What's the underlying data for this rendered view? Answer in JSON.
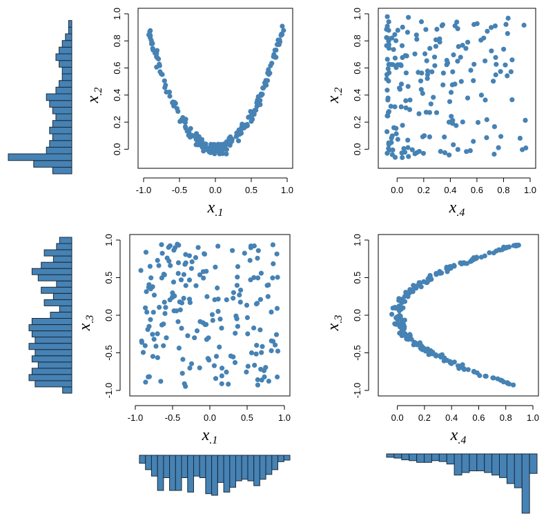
{
  "colors": {
    "point": "#4682b4",
    "bar": "#4682b4",
    "bar_stroke": "#1a2a3a",
    "frame": "#000000"
  },
  "chart_data": [
    {
      "id": "x1-vs-x2",
      "type": "scatter",
      "xlabel": {
        "main": "x",
        "sub": ".1"
      },
      "ylabel": {
        "main": "x",
        "sub": ".2"
      },
      "xlim": [
        -1.0,
        1.0
      ],
      "ylim": [
        -0.1,
        1.0
      ],
      "xticks": [
        -1.0,
        -0.5,
        0.0,
        0.5,
        1.0
      ],
      "xtick_labels": [
        "-1.0",
        "-0.5",
        "0.0",
        "0.5",
        "1.0"
      ],
      "yticks": [
        0.0,
        0.2,
        0.4,
        0.6,
        0.8,
        1.0
      ],
      "ytick_labels": [
        "0.0",
        "0.2",
        "0.4",
        "0.6",
        "0.8",
        "1.0"
      ],
      "grid": false,
      "pattern": "parabola_y",
      "n_points": 200
    },
    {
      "id": "x4-vs-x2",
      "type": "scatter",
      "xlabel": {
        "main": "x",
        "sub": ".4"
      },
      "ylabel": {
        "main": "x",
        "sub": ".2"
      },
      "xlim": [
        -0.1,
        1.0
      ],
      "ylim": [
        -0.1,
        1.0
      ],
      "xticks": [
        0.0,
        0.2,
        0.4,
        0.6,
        0.8,
        1.0
      ],
      "xtick_labels": [
        "0.0",
        "0.2",
        "0.4",
        "0.6",
        "0.8",
        "1.0"
      ],
      "yticks": [
        0.0,
        0.2,
        0.4,
        0.6,
        0.8,
        1.0
      ],
      "ytick_labels": [
        "0.0",
        "0.2",
        "0.4",
        "0.6",
        "0.8",
        "1.0"
      ],
      "grid": false,
      "pattern": "uniform_skew_left",
      "n_points": 200
    },
    {
      "id": "x1-vs-x3",
      "type": "scatter",
      "xlabel": {
        "main": "x",
        "sub": ".1"
      },
      "ylabel": {
        "main": "x",
        "sub": ".3"
      },
      "xlim": [
        -1.0,
        1.0
      ],
      "ylim": [
        -1.0,
        1.0
      ],
      "xticks": [
        -1.0,
        -0.5,
        0.0,
        0.5,
        1.0
      ],
      "xtick_labels": [
        "-1.0",
        "-0.5",
        "0.0",
        "0.5",
        "1.0"
      ],
      "yticks": [
        -1.0,
        -0.5,
        0.0,
        0.5,
        1.0
      ],
      "ytick_labels": [
        "-1.0",
        "-0.5",
        "0.0",
        "0.5",
        "1.0"
      ],
      "grid": false,
      "pattern": "uniform",
      "n_points": 200
    },
    {
      "id": "x4-vs-x3",
      "type": "scatter",
      "xlabel": {
        "main": "x",
        "sub": ".4"
      },
      "ylabel": {
        "main": "x",
        "sub": ".3"
      },
      "xlim": [
        -0.1,
        1.0
      ],
      "ylim": [
        -1.0,
        1.0
      ],
      "xticks": [
        0.0,
        0.2,
        0.4,
        0.6,
        0.8,
        1.0
      ],
      "xtick_labels": [
        "0.0",
        "0.2",
        "0.4",
        "0.6",
        "0.8",
        "1.0"
      ],
      "yticks": [
        -1.0,
        -0.5,
        0.0,
        0.5,
        1.0
      ],
      "ytick_labels": [
        "-1.0",
        "-0.5",
        "0.0",
        "0.5",
        "1.0"
      ],
      "grid": false,
      "pattern": "sideways_parabola",
      "n_points": 200
    },
    {
      "id": "hist-x2",
      "type": "bar",
      "orientation": "horizontal-left",
      "variable": "x.2",
      "range": [
        -0.1,
        1.0
      ],
      "counts": [
        6,
        12,
        20,
        8,
        7,
        6,
        7,
        6,
        5,
        6,
        7,
        8,
        5,
        4,
        3,
        3,
        4,
        5,
        4,
        3,
        2,
        1,
        1,
        0
      ]
    },
    {
      "id": "hist-x3",
      "type": "bar",
      "orientation": "horizontal-left",
      "variable": "x.3",
      "range": [
        -1.0,
        1.0
      ],
      "counts": [
        3,
        12,
        14,
        13,
        11,
        13,
        12,
        14,
        12,
        13,
        14,
        13,
        7,
        4,
        9,
        6,
        10,
        5,
        11,
        13,
        10,
        6,
        9,
        5,
        4
      ]
    },
    {
      "id": "hist-x1",
      "type": "bar",
      "orientation": "vertical-down",
      "variable": "x.1",
      "range": [
        -1.0,
        1.0
      ],
      "counts": [
        5,
        9,
        13,
        22,
        14,
        22,
        22,
        14,
        23,
        13,
        14,
        24,
        25,
        17,
        23,
        20,
        16,
        15,
        16,
        19,
        15,
        12,
        9,
        4,
        3
      ]
    },
    {
      "id": "hist-x4",
      "type": "bar",
      "orientation": "vertical-down",
      "variable": "x.4",
      "range": [
        -0.1,
        1.0
      ],
      "counts": [
        4,
        5,
        7,
        8,
        10,
        10,
        8,
        9,
        12,
        25,
        22,
        20,
        20,
        22,
        25,
        28,
        35,
        40,
        70,
        23
      ]
    }
  ]
}
